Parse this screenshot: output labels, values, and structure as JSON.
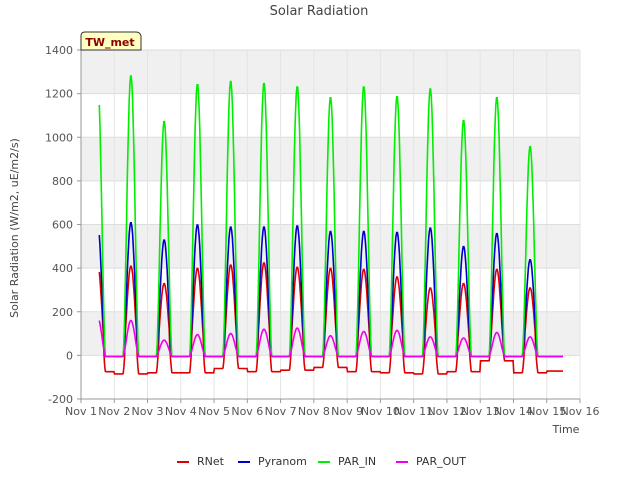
{
  "chart_data": {
    "type": "line",
    "title": "Solar Radiation",
    "xlabel": "Time",
    "ylabel": "Solar Radiation (W/m2, uE/m2/s)",
    "site_badge": "TW_met",
    "xlim": [
      1,
      16
    ],
    "ylim": [
      -200,
      1400
    ],
    "x_ticks": [
      {
        "value": 1,
        "label": "Nov 1"
      },
      {
        "value": 2,
        "label": "Nov 2"
      },
      {
        "value": 3,
        "label": "Nov 3"
      },
      {
        "value": 4,
        "label": "Nov 4"
      },
      {
        "value": 5,
        "label": "Nov 5"
      },
      {
        "value": 6,
        "label": "Nov 6"
      },
      {
        "value": 7,
        "label": "Nov 7"
      },
      {
        "value": 8,
        "label": "Nov 8"
      },
      {
        "value": 9,
        "label": "Nov 9"
      },
      {
        "value": 10,
        "label": "Nov 10"
      },
      {
        "value": 11,
        "label": "Nov 11"
      },
      {
        "value": 12,
        "label": "Nov 12"
      },
      {
        "value": 13,
        "label": "Nov 13"
      },
      {
        "value": 14,
        "label": "Nov 14"
      },
      {
        "value": 15,
        "label": "Nov 15"
      },
      {
        "value": 16,
        "label": "Nov 16"
      }
    ],
    "y_ticks": [
      -200,
      0,
      200,
      400,
      600,
      800,
      1000,
      1200,
      1400
    ],
    "grid": true,
    "legend_position": "bottom",
    "days": [
      1.5,
      2.5,
      3.5,
      4.5,
      5.5,
      6.5,
      7.5,
      8.5,
      9.5,
      10.5,
      11.5,
      12.5,
      13.5,
      14.5,
      15.5
    ],
    "series": [
      {
        "name": "RNet",
        "color": "#dd0000",
        "night_value": -75,
        "daily_peak": [
          420,
          410,
          330,
          400,
          415,
          425,
          405,
          400,
          395,
          360,
          310,
          330,
          395,
          310,
          0
        ],
        "night_values": [
          -75,
          -85,
          -80,
          -80,
          -60,
          -75,
          -68,
          -55,
          -75,
          -80,
          -85,
          -75,
          -25,
          -80,
          -72,
          -75
        ]
      },
      {
        "name": "Pyranom",
        "color": "#0000cc",
        "night_value": -5,
        "daily_peak": [
          605,
          610,
          530,
          600,
          590,
          590,
          595,
          570,
          570,
          565,
          585,
          500,
          560,
          440,
          0
        ]
      },
      {
        "name": "PAR_IN",
        "color": "#00ee00",
        "night_value": -5,
        "daily_peak": [
          1260,
          1285,
          1075,
          1245,
          1260,
          1250,
          1235,
          1185,
          1235,
          1190,
          1225,
          1080,
          1185,
          960,
          0
        ]
      },
      {
        "name": "PAR_OUT",
        "color": "#ee00ee",
        "night_value": -5,
        "daily_peak": [
          175,
          160,
          70,
          95,
          100,
          120,
          125,
          90,
          110,
          115,
          85,
          80,
          105,
          85,
          0
        ]
      }
    ]
  }
}
